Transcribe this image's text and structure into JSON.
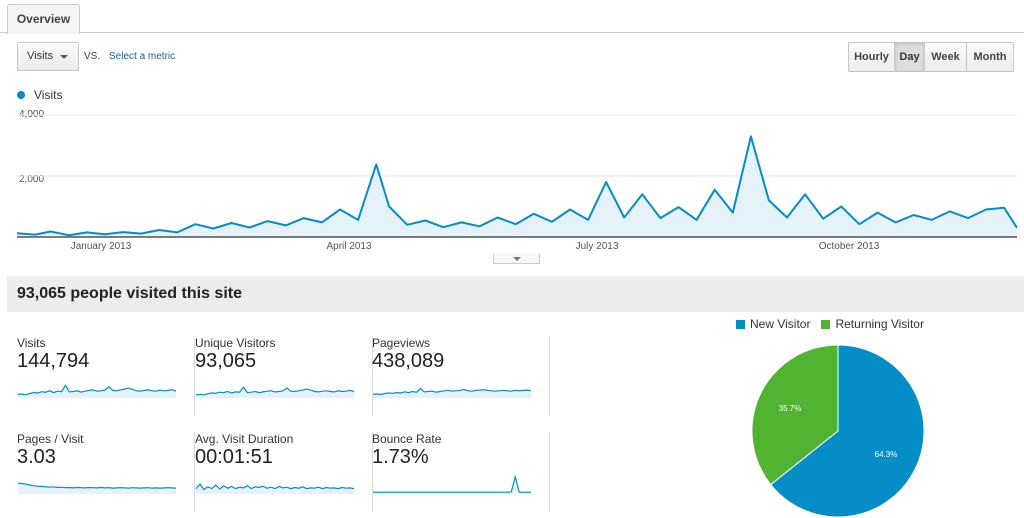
{
  "tabs": {
    "overview": "Overview"
  },
  "toolbar": {
    "metric": "Visits",
    "vs": "VS.",
    "select_metric": "Select a metric",
    "granularity": [
      "Hourly",
      "Day",
      "Week",
      "Month"
    ],
    "active_granularity": "Day"
  },
  "colors": {
    "series": "#058dc7",
    "new_visitor": "#058dc7",
    "returning_visitor": "#50b432"
  },
  "chart_data": [
    {
      "type": "area",
      "legend": [
        "Visits"
      ],
      "yticks": [
        "4,000",
        "2,000"
      ],
      "xticks": [
        "January 2013",
        "April 2013",
        "July 2013",
        "October 2013"
      ],
      "ylim": [
        0,
        4000
      ],
      "x_range": [
        "2012-12-09",
        "2013-12-31"
      ],
      "series": [
        {
          "name": "Visits",
          "points": [
            [
              "2012-12-09",
              120
            ],
            [
              "2012-12-16",
              80
            ],
            [
              "2012-12-22",
              180
            ],
            [
              "2012-12-29",
              60
            ],
            [
              "2013-01-05",
              150
            ],
            [
              "2013-01-12",
              90
            ],
            [
              "2013-01-19",
              160
            ],
            [
              "2013-01-26",
              110
            ],
            [
              "2013-02-02",
              230
            ],
            [
              "2013-02-09",
              150
            ],
            [
              "2013-02-16",
              420
            ],
            [
              "2013-02-23",
              280
            ],
            [
              "2013-03-02",
              460
            ],
            [
              "2013-03-09",
              310
            ],
            [
              "2013-03-16",
              520
            ],
            [
              "2013-03-23",
              380
            ],
            [
              "2013-03-30",
              620
            ],
            [
              "2013-04-06",
              480
            ],
            [
              "2013-04-13",
              900
            ],
            [
              "2013-04-20",
              560
            ],
            [
              "2013-04-27",
              2380
            ],
            [
              "2013-05-02",
              1000
            ],
            [
              "2013-05-09",
              400
            ],
            [
              "2013-05-16",
              540
            ],
            [
              "2013-05-23",
              320
            ],
            [
              "2013-05-30",
              480
            ],
            [
              "2013-06-06",
              350
            ],
            [
              "2013-06-13",
              640
            ],
            [
              "2013-06-20",
              420
            ],
            [
              "2013-06-27",
              760
            ],
            [
              "2013-07-04",
              500
            ],
            [
              "2013-07-11",
              900
            ],
            [
              "2013-07-18",
              560
            ],
            [
              "2013-07-25",
              1800
            ],
            [
              "2013-08-01",
              640
            ],
            [
              "2013-08-08",
              1400
            ],
            [
              "2013-08-15",
              620
            ],
            [
              "2013-08-22",
              980
            ],
            [
              "2013-08-29",
              560
            ],
            [
              "2013-09-05",
              1550
            ],
            [
              "2013-09-12",
              800
            ],
            [
              "2013-09-19",
              3300
            ],
            [
              "2013-09-26",
              1200
            ],
            [
              "2013-10-03",
              640
            ],
            [
              "2013-10-10",
              1400
            ],
            [
              "2013-10-17",
              600
            ],
            [
              "2013-10-24",
              1000
            ],
            [
              "2013-10-31",
              420
            ],
            [
              "2013-11-07",
              800
            ],
            [
              "2013-11-14",
              480
            ],
            [
              "2013-11-21",
              720
            ],
            [
              "2013-11-28",
              560
            ],
            [
              "2013-12-05",
              840
            ],
            [
              "2013-12-12",
              620
            ],
            [
              "2013-12-19",
              900
            ],
            [
              "2013-12-26",
              960
            ],
            [
              "2013-12-31",
              300
            ]
          ]
        }
      ]
    },
    {
      "type": "pie",
      "legend": [
        "New Visitor",
        "Returning Visitor"
      ],
      "values": [
        64.3,
        35.7
      ],
      "labels": [
        "64.3%",
        "35.7%"
      ]
    }
  ],
  "headline": "93,065 people visited this site",
  "metrics": [
    {
      "label": "Visits",
      "value": "144,794",
      "spark": [
        20,
        22,
        18,
        25,
        30,
        28,
        35,
        32,
        40,
        30,
        38,
        35,
        70,
        34,
        36,
        40,
        33,
        38,
        42,
        45,
        38,
        40,
        44,
        62,
        42,
        40,
        45,
        50,
        55,
        48,
        40,
        38,
        42,
        45,
        40,
        38,
        44,
        40,
        42,
        46,
        38
      ]
    },
    {
      "label": "Unique Visitors",
      "value": "93,065",
      "spark": [
        18,
        20,
        18,
        24,
        28,
        26,
        32,
        30,
        36,
        28,
        34,
        32,
        60,
        30,
        32,
        36,
        30,
        34,
        38,
        40,
        34,
        36,
        40,
        55,
        38,
        36,
        40,
        44,
        50,
        44,
        36,
        34,
        38,
        40,
        36,
        34,
        40,
        36,
        38,
        42,
        36
      ]
    },
    {
      "label": "Pageviews",
      "value": "438,089",
      "spark": [
        20,
        22,
        20,
        25,
        28,
        26,
        30,
        28,
        34,
        30,
        36,
        32,
        52,
        34,
        36,
        38,
        32,
        36,
        40,
        42,
        38,
        40,
        42,
        48,
        40,
        38,
        42,
        44,
        46,
        42,
        40,
        38,
        40,
        42,
        40,
        38,
        42,
        40,
        42,
        44,
        40
      ]
    },
    {
      "label": "Pages / Visit",
      "value": "3.03",
      "spark": [
        60,
        58,
        55,
        50,
        46,
        44,
        42,
        40,
        38,
        40,
        36,
        38,
        35,
        36,
        34,
        36,
        35,
        34,
        36,
        35,
        34,
        36,
        34,
        35,
        33,
        34,
        35,
        34,
        33,
        35,
        34,
        33,
        34,
        35,
        33,
        34,
        33,
        34,
        35,
        34,
        33
      ]
    },
    {
      "label": "Avg. Visit Duration",
      "value": "00:01:51",
      "spark": [
        30,
        55,
        25,
        40,
        30,
        50,
        28,
        45,
        32,
        42,
        30,
        38,
        34,
        46,
        30,
        40,
        36,
        44,
        32,
        38,
        30,
        42,
        34,
        38,
        30,
        36,
        32,
        40,
        30,
        34,
        32,
        38,
        30,
        36,
        32,
        34,
        30,
        36,
        32,
        34,
        30
      ]
    },
    {
      "label": "Bounce Rate",
      "value": "1.73%",
      "spark": [
        10,
        10,
        10,
        10,
        10,
        10,
        10,
        10,
        10,
        10,
        10,
        10,
        10,
        10,
        10,
        10,
        10,
        10,
        10,
        10,
        10,
        10,
        10,
        10,
        10,
        10,
        10,
        10,
        10,
        10,
        10,
        10,
        10,
        10,
        10,
        12,
        95,
        10,
        10,
        10,
        10
      ]
    }
  ]
}
